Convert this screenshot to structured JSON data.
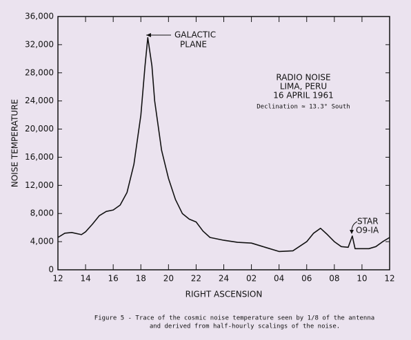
{
  "chart_data": {
    "type": "line",
    "y_label": "NOISE TEMPERATURE",
    "x_label": "RIGHT ASCENSION",
    "caption": [
      "Figure 5 - Trace of the cosmic noise temperature seen by 1/8 of the antenna",
      "and derived from half-hourly scalings of the noise."
    ],
    "annotations": [
      {
        "lines": [
          "GALACTIC",
          "PLANE"
        ]
      },
      {
        "lines": [
          "RADIO NOISE",
          "LIMA, PERU",
          "16 APRIL 1961",
          "Declination ≈ 13.3° South"
        ]
      },
      {
        "lines": [
          "STAR",
          "O9-IA"
        ]
      }
    ],
    "xlim": [
      12,
      36
    ],
    "xticks": [
      12,
      14,
      16,
      18,
      20,
      22,
      24,
      {
        "value": 26,
        "label": "02"
      },
      {
        "value": 28,
        "label": "04"
      },
      {
        "value": 30,
        "label": "06"
      },
      {
        "value": 32,
        "label": "08"
      },
      {
        "value": 34,
        "label": "10"
      },
      {
        "value": 36,
        "label": "12"
      }
    ],
    "ylim": [
      0,
      36000
    ],
    "yticks": [
      0,
      {
        "value": 4000,
        "label": "4,000"
      },
      {
        "value": 8000,
        "label": "8,000"
      },
      {
        "value": 12000,
        "label": "12,000"
      },
      {
        "value": 16000,
        "label": "16,000"
      },
      {
        "value": 20000,
        "label": "20,000"
      },
      {
        "value": 24000,
        "label": "24,000"
      },
      {
        "value": 28000,
        "label": "28,000"
      },
      {
        "value": 32000,
        "label": "32,000"
      },
      {
        "value": 36000,
        "label": "36,000"
      }
    ],
    "color": "#111111",
    "x": [
      12,
      12.5,
      13,
      13.7,
      14,
      14.5,
      15,
      15.5,
      16,
      16.5,
      17,
      17.5,
      18,
      18.3,
      18.5,
      18.8,
      19,
      19.5,
      20,
      20.5,
      21,
      21.5,
      22,
      22.5,
      23,
      24,
      25,
      26,
      27,
      28,
      29,
      30,
      30.5,
      31,
      31.5,
      32,
      32.5,
      33,
      33.3,
      33.5,
      34,
      34.5,
      35,
      35.5,
      36
    ],
    "values": [
      4600,
      5200,
      5300,
      5000,
      5400,
      6500,
      7700,
      8300,
      8500,
      9200,
      11000,
      15000,
      22000,
      29000,
      33000,
      29000,
      24000,
      17000,
      13000,
      10000,
      8000,
      7200,
      6800,
      5500,
      4600,
      4200,
      3900,
      3800,
      3200,
      2600,
      2700,
      4000,
      5200,
      5900,
      5000,
      4000,
      3300,
      3200,
      4800,
      3000,
      3000,
      3000,
      3300,
      4000,
      4600
    ]
  }
}
